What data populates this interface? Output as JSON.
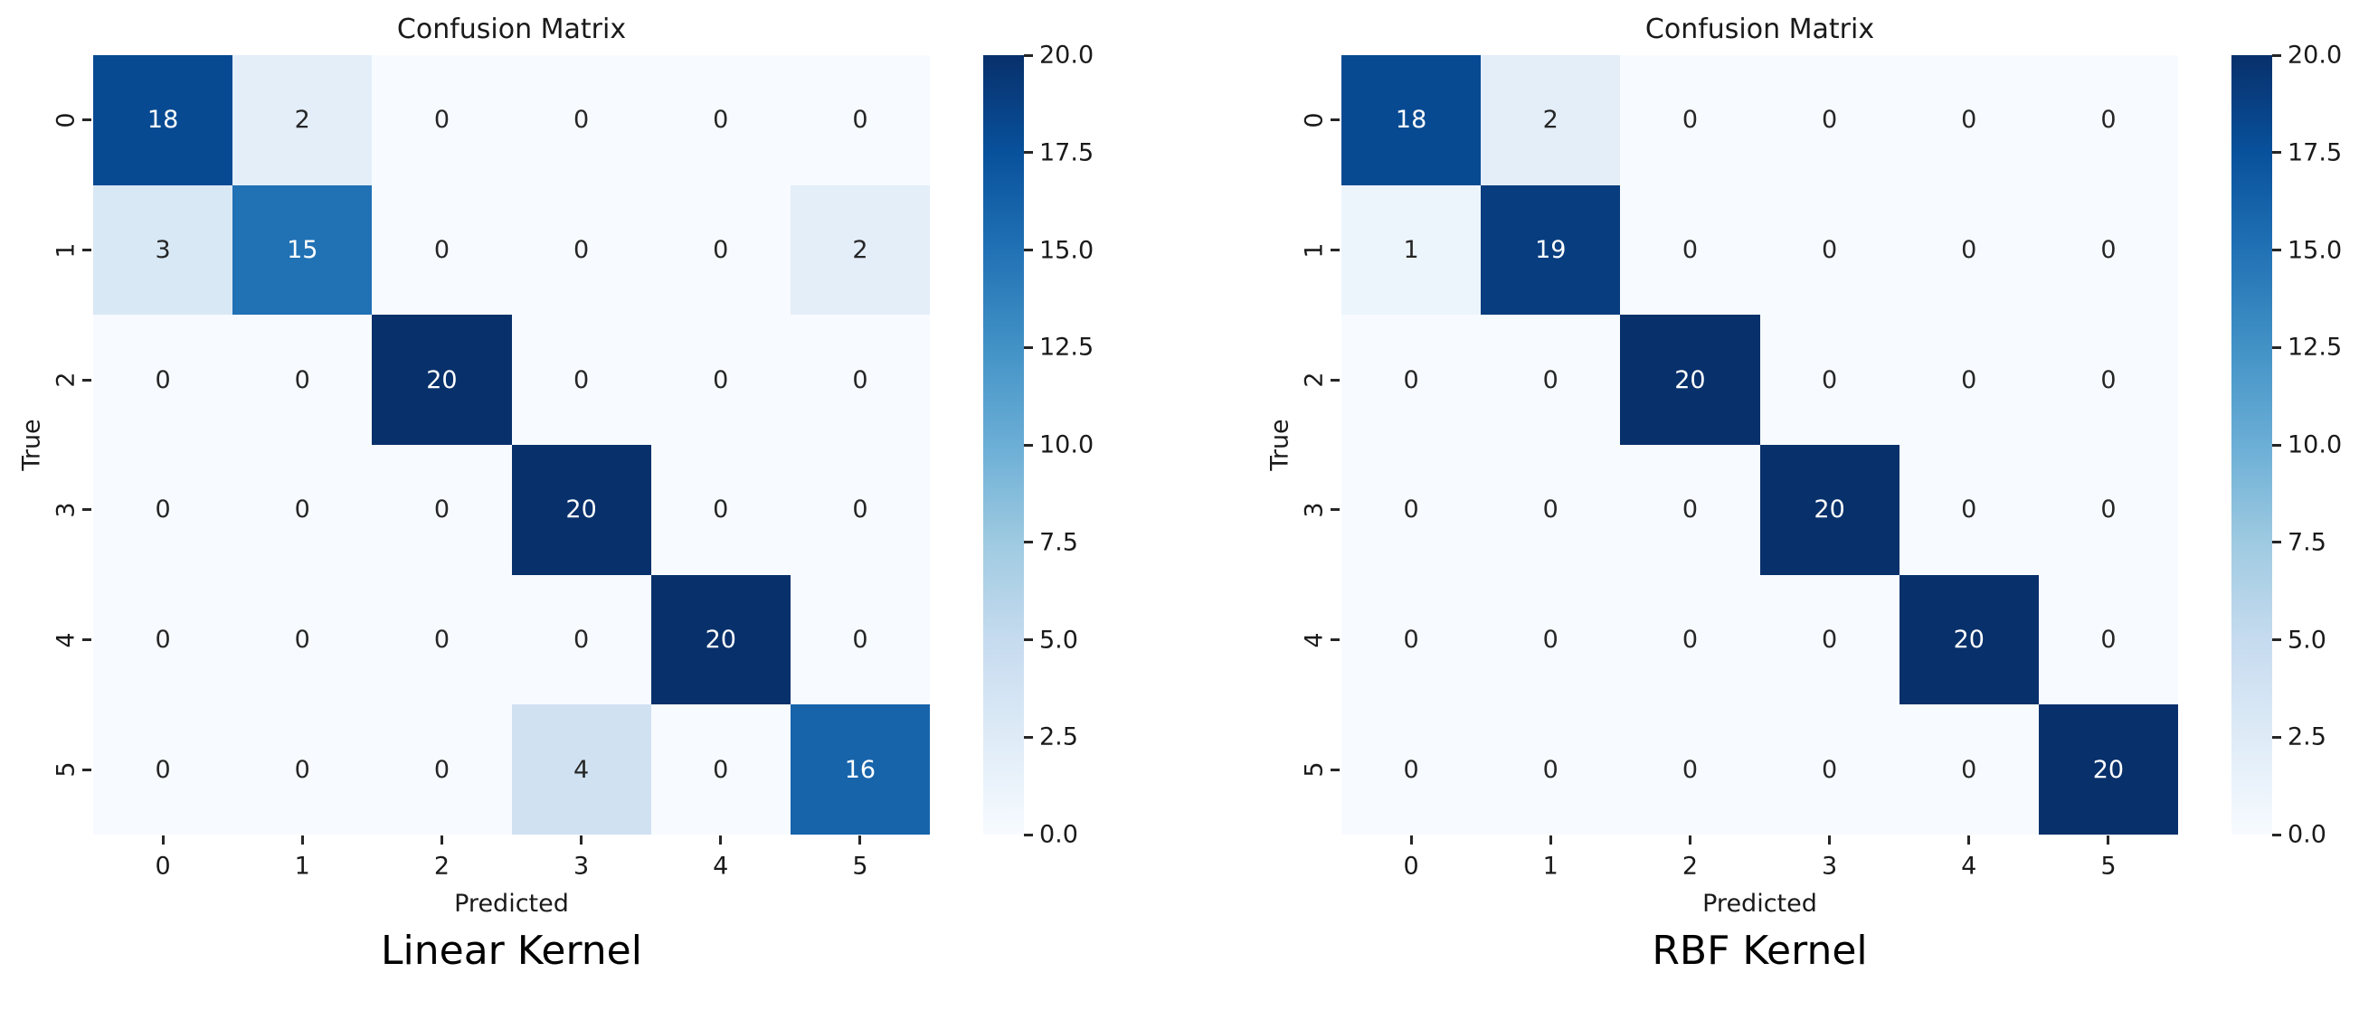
{
  "page": {
    "background": "#ffffff"
  },
  "chart_data": [
    {
      "type": "heatmap",
      "title": "Confusion Matrix",
      "caption": "Linear Kernel",
      "xlabel": "Predicted",
      "ylabel": "True",
      "x_ticklabels": [
        "0",
        "1",
        "2",
        "3",
        "4",
        "5"
      ],
      "y_ticklabels": [
        "0",
        "1",
        "2",
        "3",
        "4",
        "5"
      ],
      "matrix": [
        [
          18,
          2,
          0,
          0,
          0,
          0
        ],
        [
          3,
          15,
          0,
          0,
          0,
          2
        ],
        [
          0,
          0,
          20,
          0,
          0,
          0
        ],
        [
          0,
          0,
          0,
          20,
          0,
          0
        ],
        [
          0,
          0,
          0,
          0,
          20,
          0
        ],
        [
          0,
          0,
          0,
          4,
          0,
          16
        ]
      ],
      "vmin": 0,
      "vmax": 20,
      "colorbar_ticklabels": [
        "20.0",
        "17.5",
        "15.0",
        "12.5",
        "10.0",
        "7.5",
        "5.0",
        "2.5",
        "0.0"
      ],
      "colormap": "Blues",
      "colormap_stops": [
        "#f7fbff",
        "#deebf7",
        "#c6dbef",
        "#9ecae1",
        "#6baed6",
        "#4292c6",
        "#2171b5",
        "#08519c",
        "#08306b"
      ],
      "annotation_colors": {
        "on_light": "#262626",
        "on_dark": "#ffffff"
      },
      "legend_position": "right",
      "grid": false
    },
    {
      "type": "heatmap",
      "title": "Confusion Matrix",
      "caption": "RBF Kernel",
      "xlabel": "Predicted",
      "ylabel": "True",
      "x_ticklabels": [
        "0",
        "1",
        "2",
        "3",
        "4",
        "5"
      ],
      "y_ticklabels": [
        "0",
        "1",
        "2",
        "3",
        "4",
        "5"
      ],
      "matrix": [
        [
          18,
          2,
          0,
          0,
          0,
          0
        ],
        [
          1,
          19,
          0,
          0,
          0,
          0
        ],
        [
          0,
          0,
          20,
          0,
          0,
          0
        ],
        [
          0,
          0,
          0,
          20,
          0,
          0
        ],
        [
          0,
          0,
          0,
          0,
          20,
          0
        ],
        [
          0,
          0,
          0,
          0,
          0,
          20
        ]
      ],
      "vmin": 0,
      "vmax": 20,
      "colorbar_ticklabels": [
        "20.0",
        "17.5",
        "15.0",
        "12.5",
        "10.0",
        "7.5",
        "5.0",
        "2.5",
        "0.0"
      ],
      "colormap": "Blues",
      "colormap_stops": [
        "#f7fbff",
        "#deebf7",
        "#c6dbef",
        "#9ecae1",
        "#6baed6",
        "#4292c6",
        "#2171b5",
        "#08519c",
        "#08306b"
      ],
      "annotation_colors": {
        "on_light": "#262626",
        "on_dark": "#ffffff"
      },
      "legend_position": "right",
      "grid": false
    }
  ]
}
